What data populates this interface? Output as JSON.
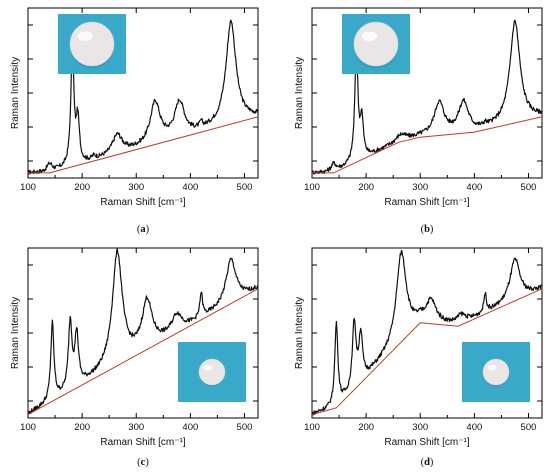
{
  "figure": {
    "panels": [
      "a",
      "b",
      "c",
      "d"
    ]
  },
  "chart_data": [
    {
      "panel": "(a)",
      "type": "line",
      "xlabel": "Raman Shift [cm⁻¹]",
      "ylabel": "Raman Intensity",
      "xlim": [
        100,
        525
      ],
      "xticks": [
        100,
        200,
        300,
        400,
        500
      ],
      "inset": {
        "sample": "large sphere",
        "position": "top-left",
        "background": "#39a9c9"
      },
      "peaks": [
        [
          140,
          0.08
        ],
        [
          182,
          0.74
        ],
        [
          192,
          0.33
        ],
        [
          222,
          0.12
        ],
        [
          265,
          0.25
        ],
        [
          335,
          0.44
        ],
        [
          380,
          0.44
        ],
        [
          420,
          0.3
        ],
        [
          475,
          0.92
        ]
      ],
      "baseline": [
        [
          100,
          0.03
        ],
        [
          140,
          0.03
        ],
        [
          525,
          0.36
        ]
      ],
      "series": [
        {
          "values_shape": "black spectrum",
          "color": "#111111"
        },
        {
          "values_shape": "baseline",
          "color": "#c0392b"
        }
      ]
    },
    {
      "panel": "(b)",
      "type": "line",
      "xlabel": "Raman Shift [cm⁻¹]",
      "ylabel": "Raman Intensity",
      "xlim": [
        100,
        525
      ],
      "xticks": [
        100,
        200,
        300,
        400,
        500
      ],
      "inset": {
        "sample": "large sphere",
        "position": "top-left",
        "background": "#39a9c9"
      },
      "peaks": [
        [
          140,
          0.08
        ],
        [
          182,
          0.74
        ],
        [
          192,
          0.33
        ],
        [
          222,
          0.12
        ],
        [
          265,
          0.25
        ],
        [
          335,
          0.44
        ],
        [
          380,
          0.44
        ],
        [
          420,
          0.3
        ],
        [
          475,
          0.92
        ]
      ],
      "baseline": [
        [
          100,
          0.03
        ],
        [
          140,
          0.03
        ],
        [
          260,
          0.21
        ],
        [
          300,
          0.24
        ],
        [
          400,
          0.27
        ],
        [
          525,
          0.36
        ]
      ],
      "series": [
        {
          "values_shape": "black spectrum",
          "color": "#111111"
        },
        {
          "values_shape": "baseline",
          "color": "#c0392b"
        }
      ]
    },
    {
      "panel": "(c)",
      "type": "line",
      "xlabel": "Raman Shift [cm⁻¹]",
      "ylabel": "Raman Intensity",
      "xlim": [
        100,
        525
      ],
      "xticks": [
        100,
        200,
        300,
        400,
        500
      ],
      "inset": {
        "sample": "small sphere",
        "position": "bottom-right",
        "background": "#39a9c9"
      },
      "peaks": [
        [
          145,
          0.55
        ],
        [
          178,
          0.55
        ],
        [
          190,
          0.48
        ],
        [
          265,
          0.97
        ],
        [
          320,
          0.68
        ],
        [
          375,
          0.6
        ],
        [
          420,
          0.72
        ],
        [
          475,
          0.93
        ]
      ],
      "baseline": [
        [
          100,
          0.02
        ],
        [
          525,
          0.76
        ]
      ],
      "series": [
        {
          "values_shape": "black spectrum",
          "color": "#111111"
        },
        {
          "values_shape": "baseline",
          "color": "#c0392b"
        }
      ]
    },
    {
      "panel": "(d)",
      "type": "line",
      "xlabel": "Raman Shift [cm⁻¹]",
      "ylabel": "Raman Intensity",
      "xlim": [
        100,
        525
      ],
      "xticks": [
        100,
        200,
        300,
        400,
        500
      ],
      "inset": {
        "sample": "small sphere",
        "position": "bottom-right",
        "background": "#39a9c9"
      },
      "peaks": [
        [
          145,
          0.55
        ],
        [
          178,
          0.55
        ],
        [
          190,
          0.48
        ],
        [
          265,
          0.97
        ],
        [
          320,
          0.68
        ],
        [
          375,
          0.6
        ],
        [
          420,
          0.72
        ],
        [
          475,
          0.93
        ]
      ],
      "baseline": [
        [
          100,
          0.02
        ],
        [
          145,
          0.06
        ],
        [
          300,
          0.56
        ],
        [
          370,
          0.54
        ],
        [
          525,
          0.76
        ]
      ],
      "series": [
        {
          "values_shape": "black spectrum",
          "color": "#111111"
        },
        {
          "values_shape": "baseline",
          "color": "#c0392b"
        }
      ]
    }
  ],
  "colors": {
    "spectrum": "#111111",
    "baseline": "#c0392b",
    "inset_bg": "#39a9c9",
    "sphere": "#eae6e6"
  }
}
